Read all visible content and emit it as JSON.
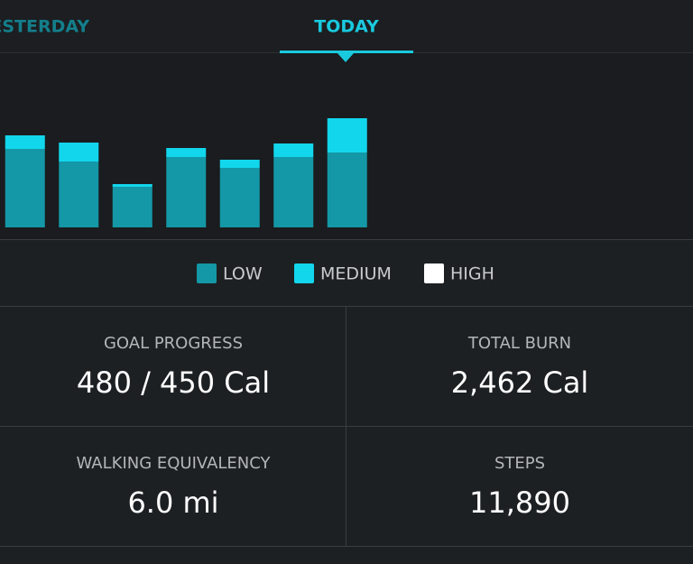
{
  "tabs": [
    "YESTERDAY",
    "TODAY"
  ],
  "chart_data": {
    "type": "bar",
    "stacked": true,
    "categories": [
      null,
      null,
      null,
      null,
      null,
      null,
      null
    ],
    "series": [
      {
        "name": "LOW",
        "color": "#1497a6",
        "values": [
          87,
          73,
          45,
          78,
          66,
          78,
          83
        ]
      },
      {
        "name": "MEDIUM",
        "color": "#12d6ec",
        "values": [
          15,
          21,
          3,
          10,
          9,
          15,
          38
        ]
      },
      {
        "name": "HIGH",
        "color": "#ffffff",
        "values": [
          0,
          0,
          0,
          0,
          0,
          0,
          0
        ]
      }
    ],
    "ylim": [
      0,
      130
    ]
  },
  "stats": [
    {
      "label": "GOAL PROGRESS",
      "value": "480 / 450 Cal"
    },
    {
      "label": "TOTAL BURN",
      "value": "2,462 Cal"
    },
    {
      "label": "WALKING EQUIVALENCY",
      "value": "6.0 mi"
    },
    {
      "label": "STEPS",
      "value": "11,890"
    }
  ]
}
